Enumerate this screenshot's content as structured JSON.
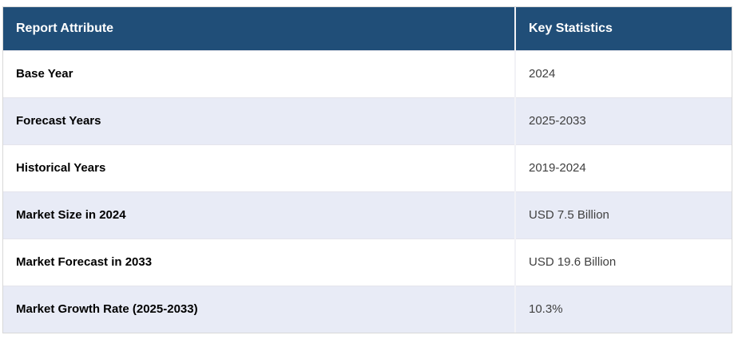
{
  "chart_data": {
    "type": "table",
    "columns": [
      "Report Attribute",
      "Key Statistics"
    ],
    "rows": [
      {
        "attribute": "Base Year",
        "value": "2024"
      },
      {
        "attribute": "Forecast Years",
        "value": "2025-2033"
      },
      {
        "attribute": "Historical Years",
        "value": "2019-2024"
      },
      {
        "attribute": "Market Size in 2024",
        "value": "USD 7.5 Billion"
      },
      {
        "attribute": "Market Forecast in 2033",
        "value": "USD 19.6 Billion"
      },
      {
        "attribute": "Market Growth Rate (2025-2033)",
        "value": "10.3%"
      }
    ],
    "layout": {
      "legend": "none",
      "grid": "row-borders",
      "alternating_rows": true
    }
  },
  "colors": {
    "header_bg": "#204e78",
    "header_text": "#ffffff",
    "row_bg_odd": "#ffffff",
    "row_bg_even": "#e8ebf6",
    "attribute_text": "#000000",
    "value_text": "#404040",
    "outer_border": "#d8d8d8",
    "cell_divider": "#f2f2f6",
    "row_divider": "#e4e4ec"
  }
}
